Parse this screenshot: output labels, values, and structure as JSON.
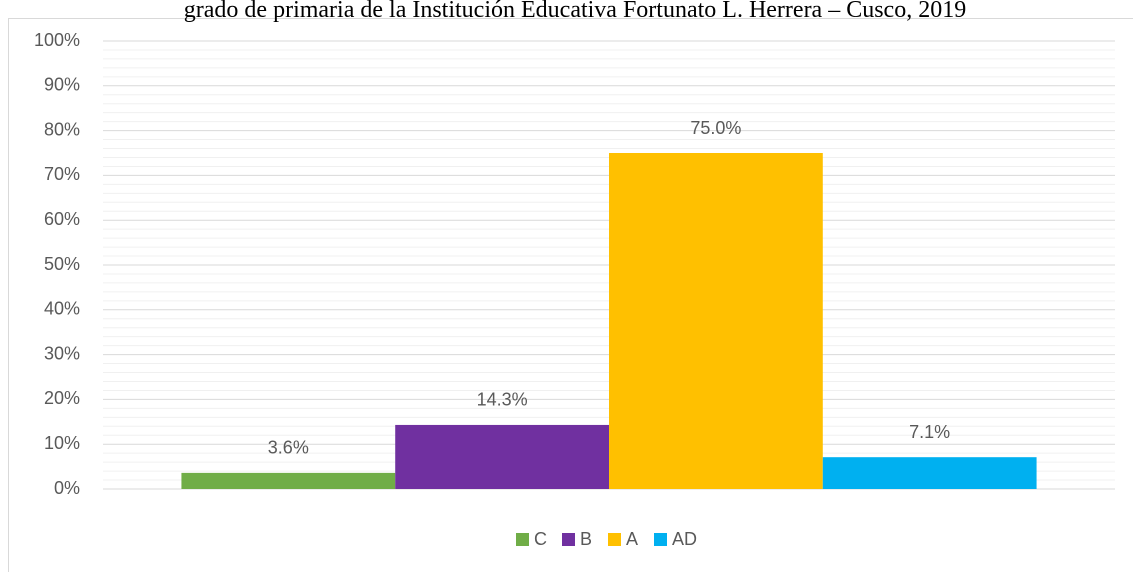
{
  "chart_data": {
    "type": "bar",
    "title": "grado de primaria de la Institución Educativa Fortunato L. Herrera – Cusco, 2019",
    "categories": [
      ""
    ],
    "series": [
      {
        "name": "C",
        "color": "#70ad47",
        "values": [
          3.6
        ],
        "value_labels": [
          "3.6%"
        ]
      },
      {
        "name": "B",
        "color": "#7030a0",
        "values": [
          14.3
        ],
        "value_labels": [
          "14.3%"
        ]
      },
      {
        "name": "A",
        "color": "#ffc000",
        "values": [
          75.0
        ],
        "value_labels": [
          "75.0%"
        ]
      },
      {
        "name": "AD",
        "color": "#00b0f0",
        "values": [
          7.1
        ],
        "value_labels": [
          "7.1%"
        ]
      }
    ],
    "ylim": [
      0,
      100
    ],
    "yticks": [
      {
        "value": 0,
        "label": "0%"
      },
      {
        "value": 10,
        "label": "10%"
      },
      {
        "value": 20,
        "label": "20%"
      },
      {
        "value": 30,
        "label": "30%"
      },
      {
        "value": 40,
        "label": "40%"
      },
      {
        "value": 50,
        "label": "50%"
      },
      {
        "value": 60,
        "label": "60%"
      },
      {
        "value": 70,
        "label": "70%"
      },
      {
        "value": 80,
        "label": "80%"
      },
      {
        "value": 90,
        "label": "90%"
      },
      {
        "value": 100,
        "label": "100%"
      }
    ],
    "minor_yticks": [
      2,
      4,
      6,
      8,
      12,
      14,
      16,
      18,
      22,
      24,
      26,
      28,
      32,
      34,
      36,
      38,
      42,
      44,
      46,
      48,
      52,
      54,
      56,
      58,
      62,
      64,
      66,
      68,
      72,
      74,
      76,
      78,
      82,
      84,
      86,
      88,
      92,
      94,
      96,
      98
    ],
    "grid": true,
    "legend": "bottom"
  }
}
